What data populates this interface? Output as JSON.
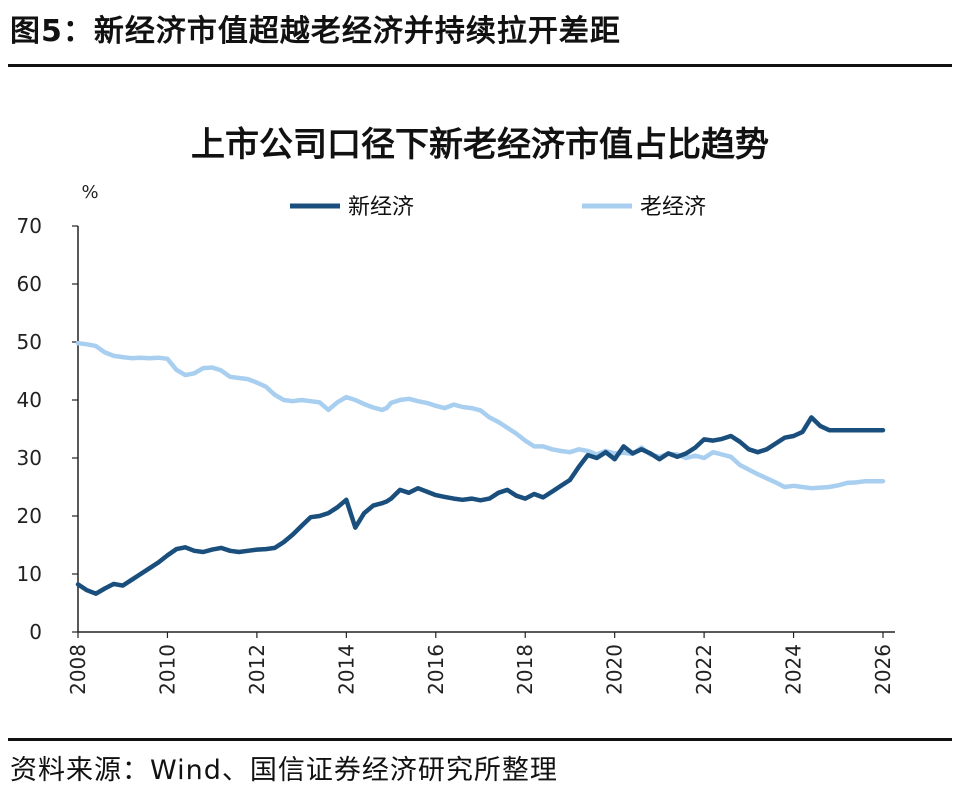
{
  "figure": {
    "title": "图5：新经济市值超越老经济并持续拉开差距",
    "source": "资料来源：Wind、国信证券经济研究所整理"
  },
  "chart_data": {
    "type": "line",
    "title": "上市公司口径下新老经济市值占比趋势",
    "ylabel": "%",
    "xlabel": "",
    "ylim": [
      0,
      70
    ],
    "xlim": [
      2008,
      2026
    ],
    "y_ticks": [
      "0",
      "10",
      "20",
      "30",
      "40",
      "50",
      "60",
      "70"
    ],
    "x_ticks": [
      "2008",
      "2010",
      "2012",
      "2014",
      "2016",
      "2018",
      "2020",
      "2022",
      "2024",
      "2026"
    ],
    "legend_position": "top",
    "grid": false,
    "series": [
      {
        "name": "新经济",
        "color": "#1a4f7d",
        "x": [
          2008.0,
          2008.2,
          2008.4,
          2008.6,
          2008.8,
          2009.0,
          2009.2,
          2009.4,
          2009.6,
          2009.8,
          2010.0,
          2010.2,
          2010.4,
          2010.6,
          2010.8,
          2011.0,
          2011.2,
          2011.4,
          2011.6,
          2011.8,
          2012.0,
          2012.2,
          2012.4,
          2012.6,
          2012.8,
          2013.0,
          2013.2,
          2013.4,
          2013.6,
          2013.8,
          2014.0,
          2014.2,
          2014.4,
          2014.6,
          2014.8,
          2014.9,
          2015.0,
          2015.2,
          2015.4,
          2015.6,
          2015.8,
          2016.0,
          2016.2,
          2016.4,
          2016.6,
          2016.8,
          2017.0,
          2017.2,
          2017.4,
          2017.6,
          2017.8,
          2018.0,
          2018.2,
          2018.4,
          2018.6,
          2018.8,
          2019.0,
          2019.2,
          2019.4,
          2019.6,
          2019.8,
          2020.0,
          2020.2,
          2020.4,
          2020.6,
          2020.8,
          2021.0,
          2021.2,
          2021.4,
          2021.6,
          2021.8,
          2022.0,
          2022.2,
          2022.4,
          2022.6,
          2022.8,
          2023.0,
          2023.2,
          2023.4,
          2023.6,
          2023.8,
          2024.0,
          2024.2,
          2024.4,
          2024.6,
          2024.8,
          2025.0,
          2025.2,
          2025.4,
          2025.6,
          2025.8,
          2026.0
        ],
        "values": [
          8.2,
          7.2,
          6.6,
          7.5,
          8.3,
          8.0,
          9.0,
          10.0,
          11.0,
          12.0,
          13.2,
          14.3,
          14.6,
          14.0,
          13.8,
          14.2,
          14.5,
          14.0,
          13.8,
          14.0,
          14.2,
          14.3,
          14.5,
          15.5,
          16.8,
          18.3,
          19.8,
          20.0,
          20.5,
          21.5,
          22.8,
          18.0,
          20.5,
          21.8,
          22.2,
          22.5,
          23.0,
          24.5,
          24.0,
          24.8,
          24.2,
          23.6,
          23.3,
          23.0,
          22.8,
          23.0,
          22.7,
          23.0,
          24.0,
          24.5,
          23.5,
          23.0,
          23.8,
          23.2,
          24.2,
          25.2,
          26.2,
          28.5,
          30.5,
          30.0,
          31.0,
          29.8,
          32.0,
          30.8,
          31.5,
          30.8,
          29.8,
          30.8,
          30.2,
          30.8,
          31.8,
          33.2,
          33.0,
          33.3,
          33.8,
          32.8,
          31.5,
          31.0,
          31.5,
          32.5,
          33.5,
          33.8,
          34.5,
          37.0,
          35.5,
          34.8,
          34.8,
          34.8,
          34.8,
          34.8,
          34.8,
          34.8
        ]
      },
      {
        "name": "老经济",
        "color": "#a9cff0",
        "x": [
          2008.0,
          2008.2,
          2008.4,
          2008.6,
          2008.8,
          2009.0,
          2009.2,
          2009.4,
          2009.6,
          2009.8,
          2010.0,
          2010.2,
          2010.4,
          2010.6,
          2010.8,
          2011.0,
          2011.2,
          2011.4,
          2011.6,
          2011.8,
          2012.0,
          2012.2,
          2012.4,
          2012.6,
          2012.8,
          2013.0,
          2013.2,
          2013.4,
          2013.6,
          2013.8,
          2014.0,
          2014.2,
          2014.4,
          2014.6,
          2014.8,
          2014.9,
          2015.0,
          2015.2,
          2015.4,
          2015.6,
          2015.8,
          2016.0,
          2016.2,
          2016.4,
          2016.6,
          2016.8,
          2017.0,
          2017.2,
          2017.4,
          2017.6,
          2017.8,
          2018.0,
          2018.2,
          2018.4,
          2018.6,
          2018.8,
          2019.0,
          2019.2,
          2019.4,
          2019.6,
          2019.8,
          2020.0,
          2020.2,
          2020.4,
          2020.6,
          2020.8,
          2021.0,
          2021.2,
          2021.4,
          2021.6,
          2021.8,
          2022.0,
          2022.2,
          2022.4,
          2022.6,
          2022.8,
          2023.0,
          2023.2,
          2023.4,
          2023.6,
          2023.8,
          2024.0,
          2024.2,
          2024.4,
          2024.6,
          2024.8,
          2025.0,
          2025.2,
          2025.4,
          2025.6,
          2025.8,
          2026.0
        ],
        "values": [
          49.8,
          49.6,
          49.3,
          48.2,
          47.6,
          47.4,
          47.2,
          47.3,
          47.2,
          47.3,
          47.1,
          45.2,
          44.3,
          44.6,
          45.5,
          45.6,
          45.1,
          44.0,
          43.8,
          43.6,
          43.0,
          42.3,
          40.9,
          40.0,
          39.8,
          40.0,
          39.8,
          39.6,
          38.3,
          39.6,
          40.5,
          40.0,
          39.3,
          38.7,
          38.3,
          38.6,
          39.5,
          40.0,
          40.2,
          39.8,
          39.5,
          39.0,
          38.6,
          39.2,
          38.8,
          38.6,
          38.2,
          37.0,
          36.2,
          35.2,
          34.2,
          33.0,
          32.0,
          32.0,
          31.5,
          31.2,
          31.0,
          31.5,
          31.2,
          30.6,
          31.2,
          30.8,
          30.9,
          30.7,
          31.8,
          30.6,
          30.2,
          30.7,
          30.6,
          30.0,
          30.4,
          30.0,
          31.0,
          30.6,
          30.2,
          28.8,
          28.0,
          27.2,
          26.5,
          25.8,
          25.0,
          25.2,
          25.0,
          24.8,
          24.9,
          25.0,
          25.3,
          25.7,
          25.8,
          26.0,
          26.0,
          26.0
        ]
      }
    ]
  }
}
